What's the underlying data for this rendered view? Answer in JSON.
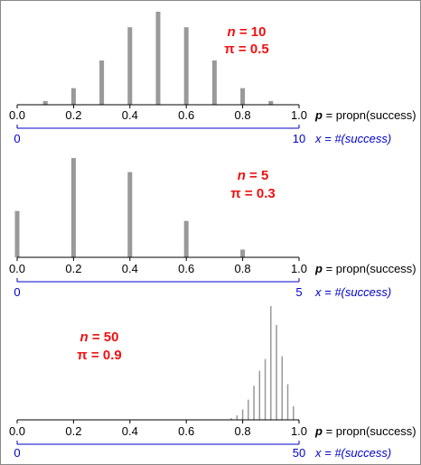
{
  "theme": {
    "bar_color": "#999999",
    "axis_color": "#000000",
    "count_axis_color": "#0000cc",
    "param_color": "#ee1111"
  },
  "chart_data": [
    {
      "type": "bar",
      "n": 10,
      "pi": 0.5,
      "params": {
        "n_label": "n",
        "n_value": "= 10",
        "pi_label": "π = 0.5"
      },
      "x_prop": [
        0.1,
        0.2,
        0.3,
        0.4,
        0.5,
        0.6,
        0.7,
        0.8,
        0.9
      ],
      "values": [
        0.0098,
        0.0439,
        0.1172,
        0.2051,
        0.2461,
        0.2051,
        0.1172,
        0.0439,
        0.0098
      ],
      "prop_ticks": [
        "0.0",
        "0.2",
        "0.4",
        "0.6",
        "0.8",
        "1.0"
      ],
      "prop_axis_label": {
        "var": "p",
        "rest": " = propn(success)"
      },
      "count_ticks": [
        "0",
        "10"
      ],
      "count_axis_label": "x = #(success)",
      "xlim": [
        0,
        1
      ]
    },
    {
      "type": "bar",
      "n": 5,
      "pi": 0.3,
      "params": {
        "n_label": "n",
        "n_value": "= 5",
        "pi_label": "π = 0.3"
      },
      "x_prop": [
        0.0,
        0.2,
        0.4,
        0.6,
        0.8
      ],
      "values": [
        0.168,
        0.36,
        0.309,
        0.132,
        0.028
      ],
      "prop_ticks": [
        "0.0",
        "0.2",
        "0.4",
        "0.6",
        "0.8",
        "1.0"
      ],
      "prop_axis_label": {
        "var": "p",
        "rest": " = propn(success)"
      },
      "count_ticks": [
        "0",
        "5"
      ],
      "count_axis_label": "x = #(success)",
      "xlim": [
        0,
        1
      ]
    },
    {
      "type": "bar",
      "n": 50,
      "pi": 0.9,
      "params": {
        "n_label": "n",
        "n_value": "= 50",
        "pi_label": "π = 0.9"
      },
      "x_prop": [
        0.76,
        0.78,
        0.8,
        0.82,
        0.84,
        0.86,
        0.88,
        0.9,
        0.92,
        0.94,
        0.96,
        0.98
      ],
      "values": [
        0.0027,
        0.0073,
        0.0167,
        0.0328,
        0.0554,
        0.0798,
        0.0988,
        0.1849,
        0.1541,
        0.1034,
        0.0578,
        0.022
      ],
      "prop_ticks": [
        "0.0",
        "0.2",
        "0.4",
        "0.6",
        "0.8",
        "1.0"
      ],
      "prop_axis_label": {
        "var": "p",
        "rest": " = propn(success)"
      },
      "count_ticks": [
        "0",
        "50"
      ],
      "count_axis_label": "x = #(success)",
      "xlim": [
        0,
        1
      ]
    }
  ]
}
